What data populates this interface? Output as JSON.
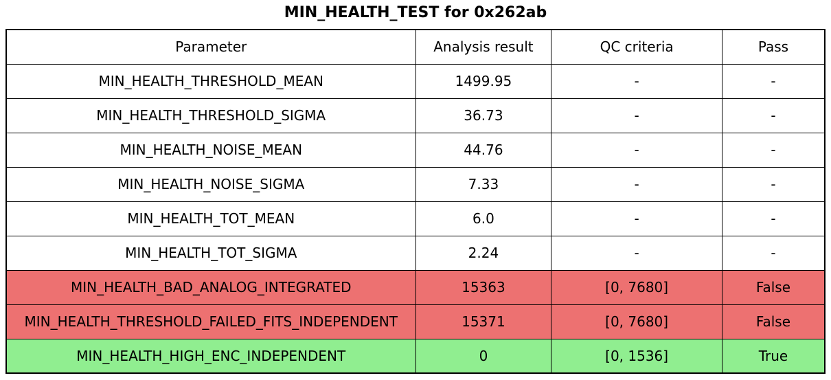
{
  "chart_data": {
    "type": "table",
    "title": "MIN_HEALTH_TEST for 0x262ab",
    "columns": [
      "Parameter",
      "Analysis result",
      "QC criteria",
      "Pass"
    ],
    "rows": [
      {
        "parameter": "MIN_HEALTH_THRESHOLD_MEAN",
        "result": "1499.95",
        "qc": "-",
        "pass": "-",
        "status": "default"
      },
      {
        "parameter": "MIN_HEALTH_THRESHOLD_SIGMA",
        "result": "36.73",
        "qc": "-",
        "pass": "-",
        "status": "default"
      },
      {
        "parameter": "MIN_HEALTH_NOISE_MEAN",
        "result": "44.76",
        "qc": "-",
        "pass": "-",
        "status": "default"
      },
      {
        "parameter": "MIN_HEALTH_NOISE_SIGMA",
        "result": "7.33",
        "qc": "-",
        "pass": "-",
        "status": "default"
      },
      {
        "parameter": "MIN_HEALTH_TOT_MEAN",
        "result": "6.0",
        "qc": "-",
        "pass": "-",
        "status": "default"
      },
      {
        "parameter": "MIN_HEALTH_TOT_SIGMA",
        "result": "2.24",
        "qc": "-",
        "pass": "-",
        "status": "default"
      },
      {
        "parameter": "MIN_HEALTH_BAD_ANALOG_INTEGRATED",
        "result": "15363",
        "qc": "[0, 7680]",
        "pass": "False",
        "status": "fail"
      },
      {
        "parameter": "MIN_HEALTH_THRESHOLD_FAILED_FITS_INDEPENDENT",
        "result": "15371",
        "qc": "[0, 7680]",
        "pass": "False",
        "status": "fail"
      },
      {
        "parameter": "MIN_HEALTH_HIGH_ENC_INDEPENDENT",
        "result": "0",
        "qc": "[0, 1536]",
        "pass": "True",
        "status": "pass"
      }
    ],
    "colors": {
      "default_row": "#FFFFFF",
      "fail_row": "#ED7171",
      "pass_row": "#90EE90",
      "border": "#000000",
      "text": "#000000"
    }
  }
}
